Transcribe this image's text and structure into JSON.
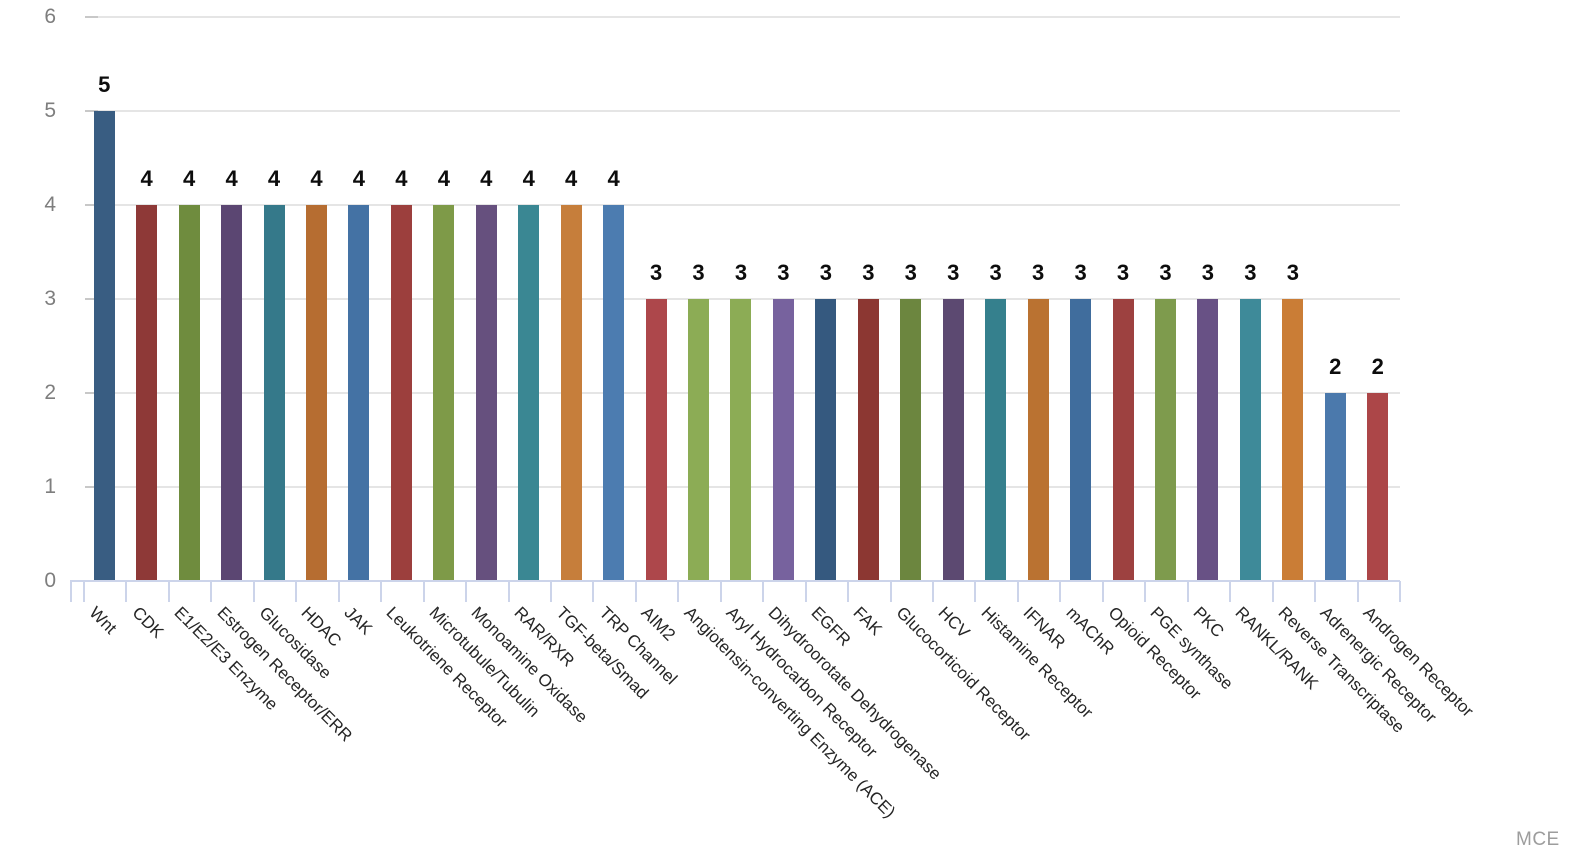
{
  "watermark": "MCE",
  "chart_data": {
    "type": "bar",
    "title": "",
    "xlabel": "",
    "ylabel": "",
    "ylim": [
      0,
      6
    ],
    "y_ticks": [
      0,
      1,
      2,
      3,
      4,
      5,
      6
    ],
    "grid": "horizontal gridlines on",
    "legend": "none",
    "value_labels": "shown above each bar, bold",
    "category_label_rotation_deg": 45,
    "axis_line_color": "#ccd4ea",
    "gridline_color": "#e5e5e5",
    "axis_text_color": "#7e7e7e",
    "categories": [
      "Wnt",
      "CDK",
      "E1/E2/E3 Enzyme",
      "Estrogen Receptor/ERR",
      "Glucosidase",
      "HDAC",
      "JAK",
      "Leukotriene Receptor",
      "Microtubule/Tubulin",
      "Monoamine Oxidase",
      "RAR/RXR",
      "TGF-beta/Smad",
      "TRP Channel",
      "AIM2",
      "Angiotensin-converting Enzyme (ACE)",
      "Aryl Hydrocarbon Receptor",
      "Dihydroorotate Dehydrogenase",
      "EGFR",
      "FAK",
      "Glucocorticoid Receptor",
      "HCV",
      "Histamine Receptor",
      "IFNAR",
      "mAChR",
      "Opioid Receptor",
      "PGE synthase",
      "PKC",
      "RANKL/RANK",
      "Reverse Transcriptase",
      "Adrenergic Receptor",
      "Androgen Receptor"
    ],
    "values": [
      5,
      4,
      4,
      4,
      4,
      4,
      4,
      4,
      4,
      4,
      4,
      4,
      4,
      3,
      3,
      3,
      3,
      3,
      3,
      3,
      3,
      3,
      3,
      3,
      3,
      3,
      3,
      3,
      3,
      2,
      2
    ],
    "bar_colors": [
      "#395D82",
      "#8E3937",
      "#6F8C3E",
      "#5B4672",
      "#35798A",
      "#B66D31",
      "#4472A4",
      "#9C3F3D",
      "#7E9A48",
      "#66507E",
      "#3A8793",
      "#C67E3B",
      "#4C7CB0",
      "#AD474B",
      "#8CAC55",
      "#8CAC55",
      "#77629E",
      "#35597F",
      "#8C3732",
      "#6C863F",
      "#5C4971",
      "#35808D",
      "#BA7231",
      "#406D9D",
      "#9D4140",
      "#7E9B4D",
      "#685185",
      "#3E8A99",
      "#CA7D36",
      "#4B79AC",
      "#AC4648"
    ]
  }
}
